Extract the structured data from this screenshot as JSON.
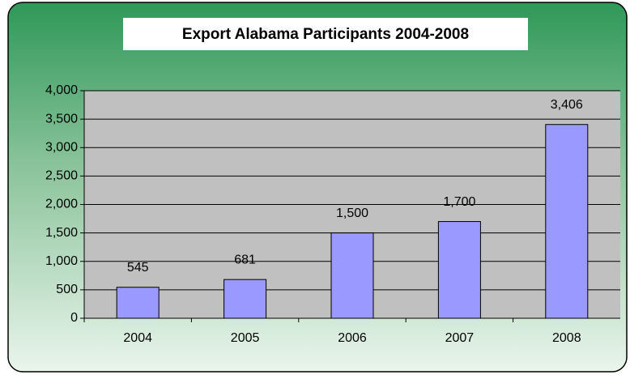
{
  "chart_data": {
    "type": "bar",
    "title": "Export Alabama Participants 2004-2008",
    "categories": [
      "2004",
      "2005",
      "2006",
      "2007",
      "2008"
    ],
    "values": [
      545,
      681,
      1500,
      1700,
      3406
    ],
    "value_labels": [
      "545",
      "681",
      "1,500",
      "1,700",
      "3,406"
    ],
    "color": "#9999ff",
    "ylim": [
      0,
      4000
    ],
    "yticks": [
      0,
      500,
      {
        "value": 1000,
        "label": "1,000"
      },
      {
        "value": 1500,
        "label": "1,500"
      },
      {
        "value": 2000,
        "label": "2,000"
      },
      {
        "value": 2500,
        "label": "2,500"
      },
      {
        "value": 3000,
        "label": "3,000"
      },
      {
        "value": 3500,
        "label": "3,500"
      },
      {
        "value": 4000,
        "label": "4,000"
      }
    ],
    "grid": true
  }
}
